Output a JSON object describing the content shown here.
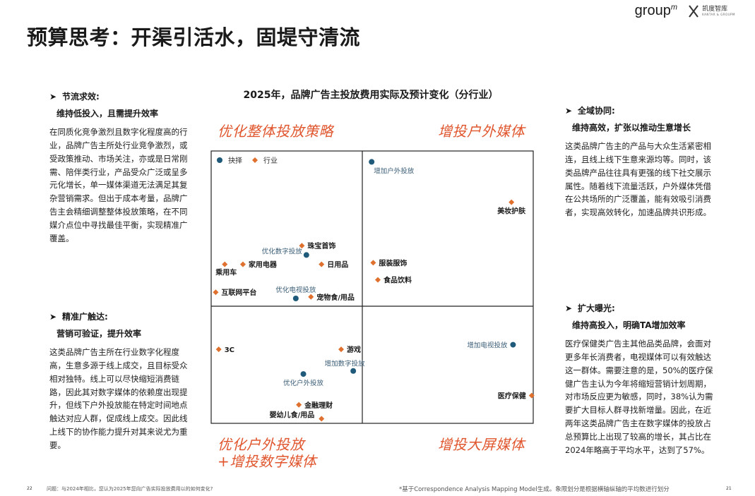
{
  "header": {
    "title": "预算思考：开渠引活水，固堤守清流",
    "logo_groupm": "group",
    "logo_groupm_m": "m",
    "logo_kt_name": "凯度智库",
    "logo_kt_sub": "KANTAR & GROUPM"
  },
  "colors": {
    "accent": "#e0562e",
    "industry_marker": "#e0702e",
    "choice_marker": "#1f5a7a",
    "axis": "#222222"
  },
  "chart_title": "2025年，品牌广告主投放费用实际及预计变化（分行业）",
  "quadrant_labels": {
    "top_left": "优化整体投放策略",
    "top_right": "增投户外媒体",
    "bottom_left_1": "优化户外投放",
    "bottom_left_2": "+增投数字媒体",
    "bottom_right": "增投大屏媒体"
  },
  "left_top": {
    "heading": "节流求效:",
    "sub": "维持低投入，且需提升效率",
    "body": "在同质化竞争激烈且数字化程度高的行业，品牌广告主所处行业竞争激烈，或受政策推动、市场关注，亦或是日常刚需、陪伴类行业，产品受众广泛或呈多元化增长，单一媒体渠道无法满足其复杂营销需求。但出于成本考量，品牌广告主会精细调整整体投放策略，在不同媒介点位中寻找最佳平衡，实现精准广覆盖。"
  },
  "left_bottom": {
    "heading": "精准广触达:",
    "sub": "营销可验证，提升效率",
    "body": "这类品牌广告主所在行业数字化程度高，生意多源于线上成交，且目标受众相对独特。线上可以尽快缩短消费链路，因此其对数字媒体的依赖度出现提升，但线下户外投放能在特定时间地点触达对应人群，促成线上成交。因此线上线下的协作能力提升对其来说尤为重要。"
  },
  "right_top": {
    "heading": "全域协同:",
    "sub": "维持高效，扩张以推动生意增长",
    "body": "这类品牌广告主的产品与大众生活紧密相连，且线上线下生意来源均等。同时，该类品牌产品往往具有更强的线下社交展示属性。随着线下流量活跃，户外媒体凭借在公共场所的广泛覆盖，能有效吸引消费者，实现高效转化，加速品牌共识形成。"
  },
  "right_bottom": {
    "heading": "扩大曝光:",
    "sub": "维持高投入，明确TA增加效率",
    "body": "医疗保健类广告主其他品类品牌，会面对更多年长消费者，电视媒体可以有效触达这一群体。需要注意的是，50%的医疗保健广告主认为今年将缩短营销计划周期，对市场反应更为敏感，同时，38%认为需要扩大目标人群寻找新增量。因此，在近两年这类品牌广告主在数字媒体的投放占总预算比上出现了较高的增长，其占比在2024年略高于平均水平，达到了57%。"
  },
  "footer": {
    "left_page": "22",
    "question": "问题：与2024年相比，您认为2025年您向广告实际投放费用以的如何变化?",
    "note": "*基于Correspondence Analysis Mapping Model生成。象限划分是根据横轴纵轴的平均数进行划分",
    "right_page": "21"
  },
  "chart_data": {
    "type": "scatter",
    "title": "2025年，品牌广告主投放费用实际及预计变化（分行业）",
    "xlabel": "",
    "ylabel": "",
    "axis_ticks": "none",
    "grid": false,
    "quadrant_split": "mean",
    "legend": [
      {
        "name": "抉择",
        "marker": "circle"
      },
      {
        "name": "行业",
        "marker": "diamond"
      }
    ],
    "series": [
      {
        "name": "抉择",
        "marker": "circle",
        "points": [
          {
            "label": "增加户外投放",
            "x": 0.06,
            "y": 0.93
          },
          {
            "label": "优化数字投放",
            "x": -0.37,
            "y": 0.33
          },
          {
            "label": "优化电视投放",
            "x": -0.44,
            "y": 0.05
          },
          {
            "label": "增加电视投放",
            "x": 0.97,
            "y": -0.25
          },
          {
            "label": "增加数字投放",
            "x": -0.06,
            "y": -0.42
          },
          {
            "label": "优化户外投放",
            "x": -0.39,
            "y": -0.44
          }
        ]
      },
      {
        "name": "行业",
        "marker": "diamond",
        "points": [
          {
            "label": "美妆护肤",
            "x": 0.96,
            "y": 0.67
          },
          {
            "label": "珠宝首饰",
            "x": -0.4,
            "y": 0.39
          },
          {
            "label": "乘用车",
            "x": -0.91,
            "y": 0.27
          },
          {
            "label": "家用电器",
            "x": -0.79,
            "y": 0.27
          },
          {
            "label": "日用品",
            "x": -0.27,
            "y": 0.27
          },
          {
            "label": "服装服饰",
            "x": 0.07,
            "y": 0.28
          },
          {
            "label": "食品饮料",
            "x": 0.1,
            "y": 0.17
          },
          {
            "label": "互联网平台",
            "x": -0.97,
            "y": 0.09
          },
          {
            "label": "宠物食/用品",
            "x": -0.34,
            "y": 0.06
          },
          {
            "label": "3C",
            "x": -0.95,
            "y": -0.28
          },
          {
            "label": "游戏",
            "x": -0.14,
            "y": -0.28
          },
          {
            "label": "医疗保健",
            "x": 1.09,
            "y": -0.58
          },
          {
            "label": "金融理财",
            "x": -0.42,
            "y": -0.64
          },
          {
            "label": "婴幼儿食/用品",
            "x": -0.27,
            "y": -0.73
          }
        ]
      }
    ]
  }
}
